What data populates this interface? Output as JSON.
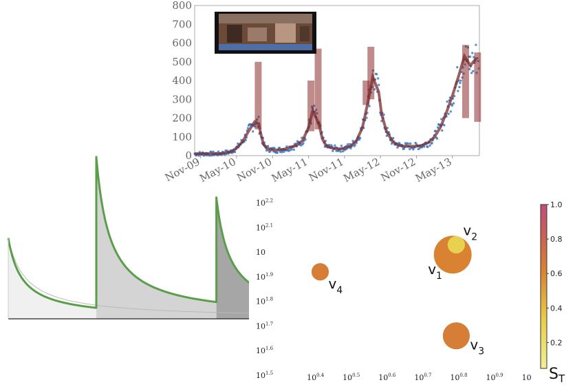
{
  "chart_data": [
    {
      "type": "line",
      "title": "",
      "xlabel": "",
      "ylabel": "",
      "ylim": [
        0,
        800
      ],
      "y_ticks": [
        "0",
        "100",
        "200",
        "300",
        "400",
        "500",
        "600",
        "700",
        "800"
      ],
      "x_ticks": [
        "Nov-09",
        "May-10",
        "Nov-10",
        "May-11",
        "Nov-11",
        "May-12",
        "Nov-12",
        "May-13"
      ],
      "x_tick_months": [
        0,
        6,
        12,
        18,
        24,
        30,
        36,
        42
      ],
      "x_range_months": [
        -1,
        46.5
      ],
      "grid": false,
      "series": [
        {
          "name": "",
          "color": "#7a2b2b",
          "x": [
            -1,
            0,
            1,
            2,
            3,
            4,
            5,
            6,
            7,
            8,
            9,
            9.7,
            10,
            10.5,
            11,
            12,
            13,
            14,
            15,
            16,
            17,
            18,
            18.7,
            19.3,
            19.8,
            20.3,
            21,
            22,
            23,
            24,
            25,
            26,
            27,
            28,
            28.7,
            29.2,
            29.7,
            30.2,
            31,
            32,
            33,
            34,
            35,
            36,
            37,
            38,
            39,
            40,
            41,
            42,
            43,
            44,
            45,
            46
          ],
          "y": [
            10,
            10,
            10,
            10,
            10,
            15,
            20,
            40,
            75,
            130,
            180,
            170,
            120,
            60,
            40,
            30,
            30,
            35,
            45,
            55,
            80,
            150,
            240,
            200,
            160,
            90,
            50,
            40,
            35,
            40,
            50,
            80,
            150,
            300,
            420,
            380,
            340,
            220,
            130,
            75,
            55,
            50,
            50,
            50,
            55,
            70,
            100,
            150,
            230,
            320,
            420,
            530,
            480,
            520
          ]
        }
      ],
      "peak_bars": [
        {
          "x": 9.6,
          "low": 140,
          "high": 500
        },
        {
          "x": 18.4,
          "low": 130,
          "high": 400
        },
        {
          "x": 19.6,
          "low": 140,
          "high": 570
        },
        {
          "x": 27.6,
          "low": 270,
          "high": 400
        },
        {
          "x": 28.4,
          "low": 300,
          "high": 580
        },
        {
          "x": 44.2,
          "low": 200,
          "high": 590
        },
        {
          "x": 46.2,
          "low": 180,
          "high": 550
        }
      ],
      "observed_color": "#3a78c4"
    },
    {
      "type": "area",
      "title": "",
      "xlabel": "",
      "ylabel": "",
      "grid": false,
      "series": [
        {
          "name": "",
          "start": 0,
          "peak": 0.5,
          "color": "#f0f0f0"
        },
        {
          "name": "",
          "start": 0.33,
          "peak": 1.0,
          "color": "#d4d4d4"
        },
        {
          "name": "",
          "start": 0.78,
          "peak": 0.75,
          "color": "#a6a6a6"
        }
      ],
      "baseline": {
        "peak": 0.5,
        "color": "#b8b8b8"
      },
      "line_color": "#5a9e4a"
    },
    {
      "type": "scatter",
      "title": "",
      "xlabel": "",
      "ylabel": "",
      "x_scale": "log",
      "y_scale": "log",
      "x_ticks": [
        {
          "base": "10",
          "exp": "0.4",
          "value": 0.4
        },
        {
          "base": "10",
          "exp": "0.5",
          "value": 0.5
        },
        {
          "base": "10",
          "exp": "0.6",
          "value": 0.6
        },
        {
          "base": "10",
          "exp": "0.7",
          "value": 0.7
        },
        {
          "base": "10",
          "exp": "0.8",
          "value": 0.8
        },
        {
          "base": "10",
          "exp": "0.9",
          "value": 0.9
        },
        {
          "base": "10",
          "exp": "",
          "value": 1.0
        }
      ],
      "y_ticks": [
        {
          "base": "10",
          "exp": "1.5",
          "value": 1.5
        },
        {
          "base": "10",
          "exp": "1.6",
          "value": 1.6
        },
        {
          "base": "10",
          "exp": "1.7",
          "value": 1.7
        },
        {
          "base": "10",
          "exp": "1.8",
          "value": 1.8
        },
        {
          "base": "10",
          "exp": "1.9",
          "value": 1.9
        },
        {
          "base": "10",
          "exp": "",
          "value": 2.0
        },
        {
          "base": "10",
          "exp": "2.1",
          "value": 2.1
        },
        {
          "base": "10",
          "exp": "2.2",
          "value": 2.2
        }
      ],
      "points": [
        {
          "label": "v",
          "sub": "1",
          "x": 0.79,
          "y": 1.99,
          "size": 0.98,
          "st": 0.62
        },
        {
          "label": "v",
          "sub": "2",
          "x": 0.8,
          "y": 2.03,
          "size": 0.45,
          "st": 0.3
        },
        {
          "label": "v",
          "sub": "3",
          "x": 0.8,
          "y": 1.66,
          "size": 0.7,
          "st": 0.65
        },
        {
          "label": "v",
          "sub": "4",
          "x": 0.42,
          "y": 1.92,
          "size": 0.45,
          "st": 0.65
        }
      ],
      "colorbar": {
        "label": "S",
        "label_sub": "T",
        "ticks": [
          "0.2",
          "0.4",
          "0.6",
          "0.8",
          "1.0"
        ],
        "range": [
          0.05,
          1.0
        ]
      }
    }
  ]
}
